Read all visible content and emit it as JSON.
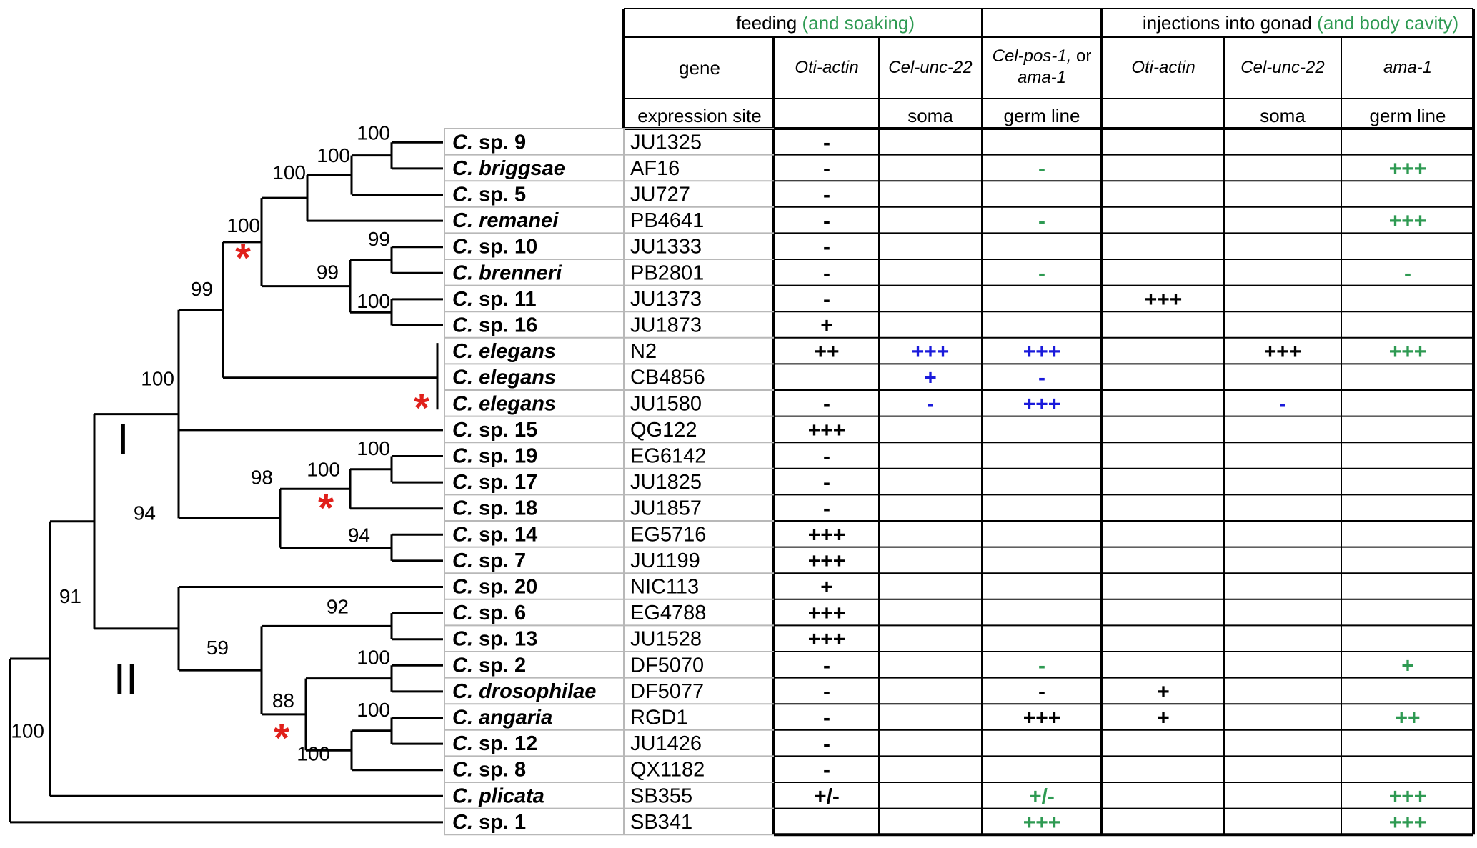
{
  "header": {
    "feeding_main": "feeding",
    "feeding_extra": "(and soaking)",
    "injection_main": "injections into gonad",
    "injection_extra": "(and body cavity)",
    "gene_label": "gene",
    "expression_label": "expression site",
    "columns": [
      {
        "gene": "Oti-actin",
        "site": ""
      },
      {
        "gene": "Cel-unc-22",
        "site": "soma"
      },
      {
        "gene": "Cel-pos-1, or ama-1",
        "gene_line1": "Cel-pos-1,",
        "gene_or": "or",
        "gene_line2": "ama-1",
        "site": "germ line"
      },
      {
        "gene": "Oti-actin",
        "site": ""
      },
      {
        "gene": "Cel-unc-22",
        "site": "soma"
      },
      {
        "gene": "ama-1",
        "site": "germ line"
      }
    ]
  },
  "colors": {
    "black": "#000000",
    "blue": "#1a1adb",
    "green": "#2e9a52",
    "star": "#e0201b"
  },
  "rows": [
    {
      "genus": "C.",
      "species": "sp. 9",
      "species_italic": false,
      "strain": "JU1325",
      "cells": [
        {
          "t": "-",
          "c": "black"
        },
        null,
        null,
        null,
        null,
        null
      ]
    },
    {
      "genus": "C.",
      "species": "briggsae",
      "species_italic": true,
      "strain": "AF16",
      "cells": [
        {
          "t": "-",
          "c": "black"
        },
        null,
        {
          "t": "-",
          "c": "green"
        },
        null,
        null,
        {
          "t": "+++",
          "c": "green"
        }
      ]
    },
    {
      "genus": "C.",
      "species": "sp. 5",
      "species_italic": false,
      "strain": "JU727",
      "cells": [
        {
          "t": "-",
          "c": "black"
        },
        null,
        null,
        null,
        null,
        null
      ]
    },
    {
      "genus": "C.",
      "species": "remanei",
      "species_italic": true,
      "strain": "PB4641",
      "cells": [
        {
          "t": "-",
          "c": "black"
        },
        null,
        {
          "t": "-",
          "c": "green"
        },
        null,
        null,
        {
          "t": "+++",
          "c": "green"
        }
      ]
    },
    {
      "genus": "C.",
      "species": "sp. 10",
      "species_italic": false,
      "strain": "JU1333",
      "cells": [
        {
          "t": "-",
          "c": "black"
        },
        null,
        null,
        null,
        null,
        null
      ]
    },
    {
      "genus": "C.",
      "species": "brenneri",
      "species_italic": true,
      "strain": "PB2801",
      "cells": [
        {
          "t": "-",
          "c": "black"
        },
        null,
        {
          "t": "-",
          "c": "green"
        },
        null,
        null,
        {
          "t": "-",
          "c": "green"
        }
      ]
    },
    {
      "genus": "C.",
      "species": "sp. 11",
      "species_italic": false,
      "strain": "JU1373",
      "cells": [
        {
          "t": "-",
          "c": "black"
        },
        null,
        null,
        {
          "t": "+++",
          "c": "black"
        },
        null,
        null
      ]
    },
    {
      "genus": "C.",
      "species": "sp. 16",
      "species_italic": false,
      "strain": "JU1873",
      "cells": [
        {
          "t": "+",
          "c": "black"
        },
        null,
        null,
        null,
        null,
        null
      ]
    },
    {
      "genus": "C.",
      "species": "elegans",
      "species_italic": true,
      "strain": "N2",
      "cells": [
        {
          "t": "++",
          "c": "black"
        },
        {
          "t": "+++",
          "c": "blue"
        },
        {
          "t": "+++",
          "c": "blue"
        },
        null,
        {
          "t": "+++",
          "c": "black"
        },
        {
          "t": "+++",
          "c": "green"
        }
      ]
    },
    {
      "genus": "C.",
      "species": "elegans",
      "species_italic": true,
      "strain": "CB4856",
      "cells": [
        null,
        {
          "t": "+",
          "c": "blue"
        },
        {
          "t": "-",
          "c": "blue"
        },
        null,
        null,
        null
      ]
    },
    {
      "genus": "C.",
      "species": "elegans",
      "species_italic": true,
      "strain": "JU1580",
      "cells": [
        {
          "t": "-",
          "c": "black"
        },
        {
          "t": "-",
          "c": "blue"
        },
        {
          "t": "+++",
          "c": "blue"
        },
        null,
        {
          "t": "-",
          "c": "blue"
        },
        null
      ]
    },
    {
      "genus": "C.",
      "species": "sp. 15",
      "species_italic": false,
      "strain": "QG122",
      "cells": [
        {
          "t": "+++",
          "c": "black"
        },
        null,
        null,
        null,
        null,
        null
      ]
    },
    {
      "genus": "C.",
      "species": "sp. 19",
      "species_italic": false,
      "strain": "EG6142",
      "cells": [
        {
          "t": "-",
          "c": "black"
        },
        null,
        null,
        null,
        null,
        null
      ]
    },
    {
      "genus": "C.",
      "species": "sp. 17",
      "species_italic": false,
      "strain": "JU1825",
      "cells": [
        {
          "t": "-",
          "c": "black"
        },
        null,
        null,
        null,
        null,
        null
      ]
    },
    {
      "genus": "C.",
      "species": "sp. 18",
      "species_italic": false,
      "strain": "JU1857",
      "cells": [
        {
          "t": "-",
          "c": "black"
        },
        null,
        null,
        null,
        null,
        null
      ]
    },
    {
      "genus": "C.",
      "species": "sp. 14",
      "species_italic": false,
      "strain": "EG5716",
      "cells": [
        {
          "t": "+++",
          "c": "black"
        },
        null,
        null,
        null,
        null,
        null
      ]
    },
    {
      "genus": "C.",
      "species": "sp. 7",
      "species_italic": false,
      "strain": "JU1199",
      "cells": [
        {
          "t": "+++",
          "c": "black"
        },
        null,
        null,
        null,
        null,
        null
      ]
    },
    {
      "genus": "C.",
      "species": "sp. 20",
      "species_italic": false,
      "strain": "NIC113",
      "cells": [
        {
          "t": "+",
          "c": "black"
        },
        null,
        null,
        null,
        null,
        null
      ]
    },
    {
      "genus": "C.",
      "species": "sp. 6",
      "species_italic": false,
      "strain": "EG4788",
      "cells": [
        {
          "t": "+++",
          "c": "black"
        },
        null,
        null,
        null,
        null,
        null
      ]
    },
    {
      "genus": "C.",
      "species": "sp. 13",
      "species_italic": false,
      "strain": "JU1528",
      "cells": [
        {
          "t": "+++",
          "c": "black"
        },
        null,
        null,
        null,
        null,
        null
      ]
    },
    {
      "genus": "C.",
      "species": "sp. 2",
      "species_italic": false,
      "strain": "DF5070",
      "cells": [
        {
          "t": "-",
          "c": "black"
        },
        null,
        {
          "t": "-",
          "c": "green"
        },
        null,
        null,
        {
          "t": "+",
          "c": "green"
        }
      ]
    },
    {
      "genus": "C.",
      "species": "drosophilae",
      "species_italic": true,
      "strain": "DF5077",
      "cells": [
        {
          "t": "-",
          "c": "black"
        },
        null,
        {
          "t": "-",
          "c": "black"
        },
        {
          "t": "+",
          "c": "black"
        },
        null,
        null
      ]
    },
    {
      "genus": "C.",
      "species": "angaria",
      "species_italic": true,
      "strain": "RGD1",
      "cells": [
        {
          "t": "-",
          "c": "black"
        },
        null,
        {
          "t": "+++",
          "c": "black"
        },
        {
          "t": "+",
          "c": "black"
        },
        null,
        {
          "t": "++",
          "c": "green"
        }
      ]
    },
    {
      "genus": "C.",
      "species": "sp. 12",
      "species_italic": false,
      "strain": "JU1426",
      "cells": [
        {
          "t": "-",
          "c": "black"
        },
        null,
        null,
        null,
        null,
        null
      ]
    },
    {
      "genus": "C.",
      "species": "sp. 8",
      "species_italic": false,
      "strain": "QX1182",
      "cells": [
        {
          "t": "-",
          "c": "black"
        },
        null,
        null,
        null,
        null,
        null
      ]
    },
    {
      "genus": "C.",
      "species": "plicata",
      "species_italic": true,
      "strain": "SB355",
      "cells": [
        {
          "t": "+/-",
          "c": "black"
        },
        null,
        {
          "t": "+/-",
          "c": "green"
        },
        null,
        null,
        {
          "t": "+++",
          "c": "green"
        }
      ]
    },
    {
      "genus": "C.",
      "species": "sp. 1",
      "species_italic": false,
      "strain": "SB341",
      "cells": [
        null,
        null,
        {
          "t": "+++",
          "c": "green"
        },
        null,
        null,
        {
          "t": "+++",
          "c": "green"
        }
      ]
    }
  ],
  "tree": {
    "bootstrap": [
      "100",
      "100",
      "100",
      "100",
      "99",
      "99",
      "99",
      "100",
      "100",
      "98",
      "100",
      "100",
      "94",
      "91",
      "94",
      "92",
      "59",
      "88",
      "100",
      "100",
      "100"
    ],
    "clades": [
      "I",
      "II"
    ],
    "star": "*"
  }
}
